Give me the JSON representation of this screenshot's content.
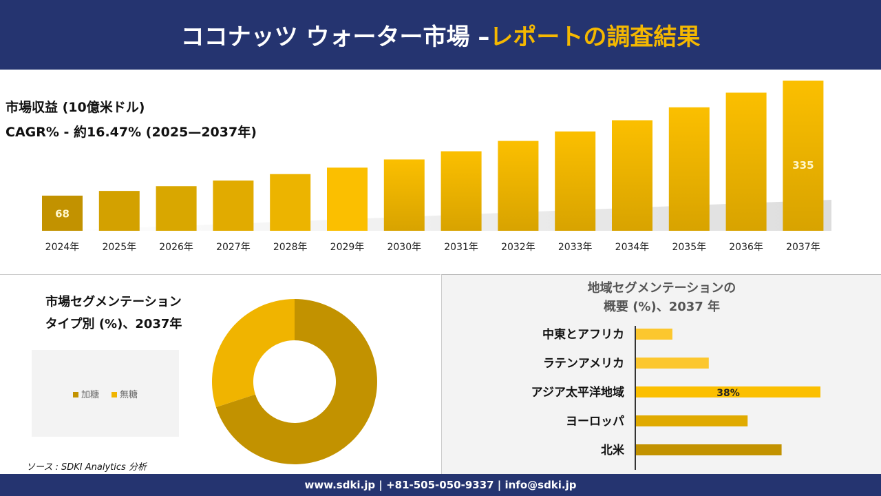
{
  "header": {
    "title": "ココナッツ ウォーター市場 –",
    "title_accent": "レポートの調査結果"
  },
  "colors": {
    "header_bg": "#253470",
    "accent": "#f5b800",
    "bar_dark": "#c29200",
    "bar_mid": "#dba800",
    "bar_light": "#fbbf00"
  },
  "revenue": {
    "label": "市場収益 (10億米ドル)",
    "cagr": "CAGR% - 約16.47% (2025—2037年)"
  },
  "chart_data": [
    {
      "type": "bar",
      "categories": [
        "2024年",
        "2025年",
        "2026年",
        "2027年",
        "2028年",
        "2029年",
        "2030年",
        "2031年",
        "2032年",
        "2033年",
        "2034年",
        "2035年",
        "2036年",
        "2037年"
      ],
      "values": [
        68,
        79,
        90,
        103,
        118,
        133,
        152,
        171,
        195,
        217,
        243,
        273,
        307,
        335
      ],
      "data_labels": {
        "2024年": "68",
        "2037年": "335"
      }
    },
    {
      "type": "pie",
      "donut": true,
      "title": "市場セグメンテーション タイプ別 (%)、2037年",
      "title_lines": [
        "市場セグメンテーション",
        "タイプ別 (%)、2037年"
      ],
      "categories": [
        "加糖",
        "無糖"
      ],
      "values": [
        70,
        30
      ],
      "colors": [
        "#c29200",
        "#f0b400"
      ],
      "legend": "left"
    },
    {
      "type": "bar",
      "orientation": "horizontal",
      "title_lines": [
        "地域セグメンテーションの",
        "概要 (%)、2037 年"
      ],
      "categories": [
        "中東とアフリカ",
        "ラテンアメリカ",
        "アジア太平洋地域",
        "ヨーロッパ",
        "北米"
      ],
      "values": [
        7.5,
        15,
        38,
        23,
        30
      ],
      "data_labels": {
        "アジア太平洋地域": "38%"
      },
      "colors": [
        "#fcc72e",
        "#fcc72e",
        "#fbbf00",
        "#e0aa00",
        "#c29200"
      ]
    }
  ],
  "source": "ソース : SDKI Analytics 分析",
  "footer": "www.sdki.jp | +81-505-050-9337 | info@sdki.jp"
}
